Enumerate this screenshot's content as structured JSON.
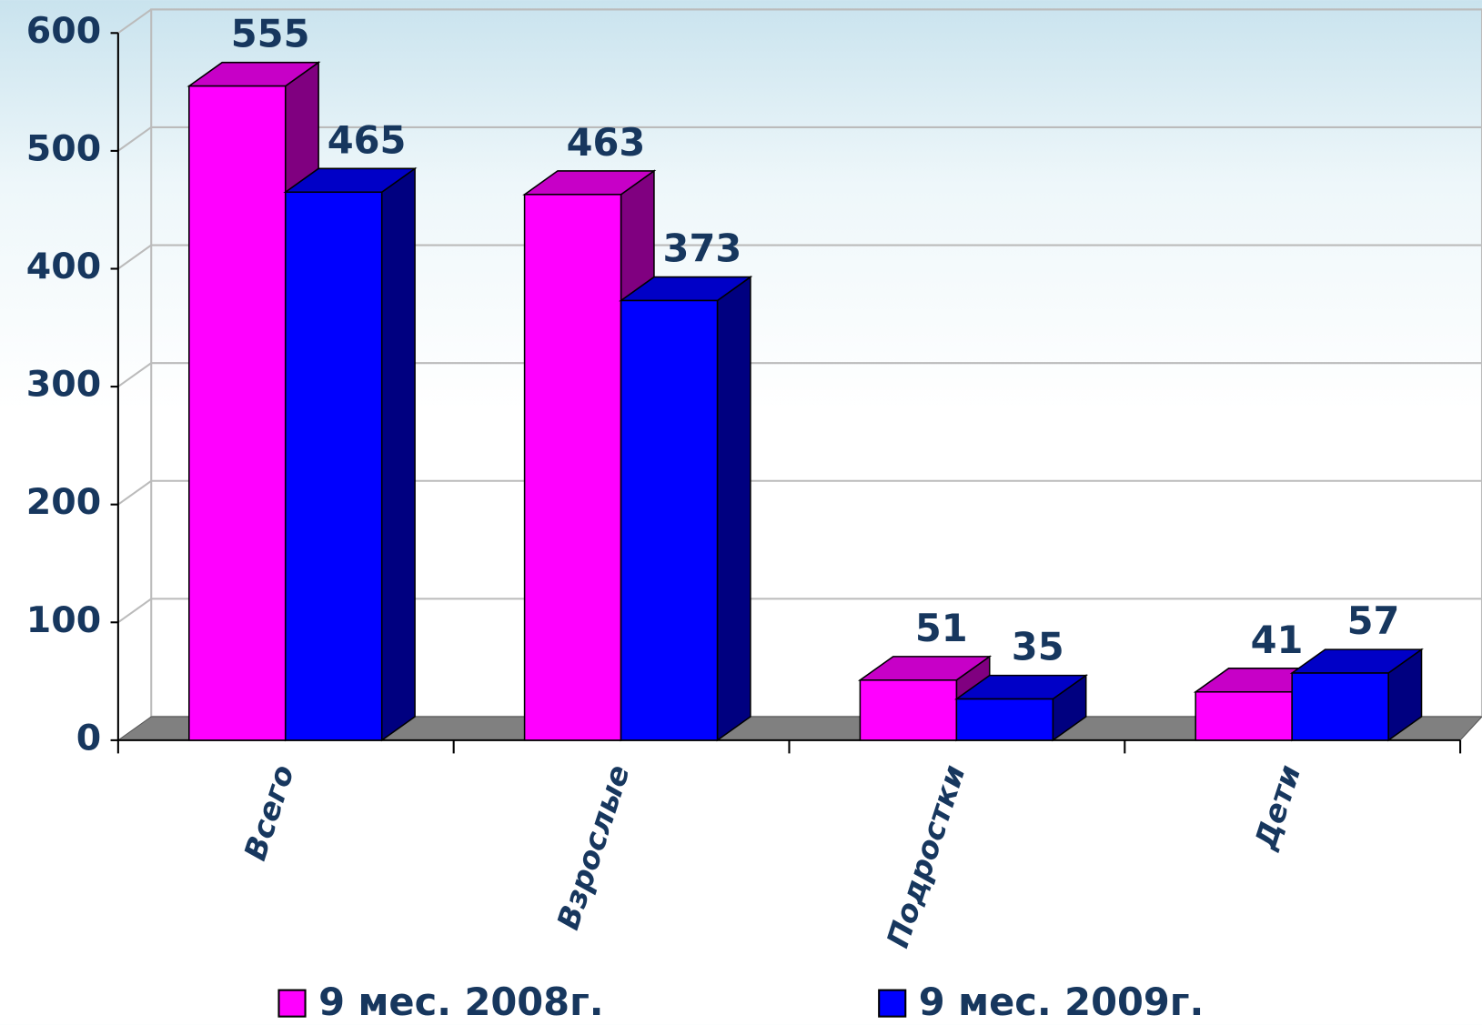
{
  "chart_data": {
    "type": "bar3d",
    "categories": [
      "Всего",
      "Взрослые",
      "Подростки",
      "Дети"
    ],
    "series": [
      {
        "name": "9 мес. 2008г.",
        "color": "#ff00ff",
        "values": [
          555,
          463,
          51,
          41
        ]
      },
      {
        "name": "9 мес. 2009г.",
        "color": "#0000ff",
        "values": [
          465,
          373,
          35,
          57
        ]
      }
    ],
    "ylim": [
      0,
      600
    ],
    "yticks": [
      0,
      100,
      200,
      300,
      400,
      500,
      600
    ],
    "grid": true,
    "legend": "bottom"
  }
}
